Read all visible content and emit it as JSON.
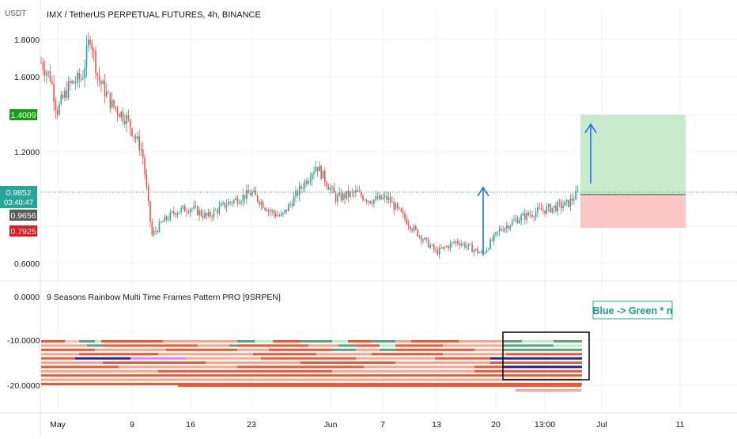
{
  "header": {
    "currency": "USDT",
    "title": "IMX / TetherUS PERPETUAL FUTURES, 4h, BINANCE"
  },
  "price_axis": {
    "ticks": [
      "1.8000",
      "1.6000",
      "1.2000",
      "0.6000"
    ],
    "labels": {
      "target": {
        "text": "1.4009",
        "color": "#10a010"
      },
      "current": {
        "text": "0.9852",
        "color": "#26a69a"
      },
      "countdown": {
        "text": "03:40:47"
      },
      "entry": {
        "text": "0.9656",
        "color": "#5a5a5a"
      },
      "stop": {
        "text": "0.7925",
        "color": "#e8191e"
      }
    }
  },
  "indicator": {
    "title": "9 Seasons Rainbow Multi Time Frames Pattern PRO [9SRPEN]",
    "ticks": [
      "0.0000",
      "-10.0000",
      "-20.0000"
    ],
    "annotation": "Blue -> Green * n"
  },
  "time_axis": {
    "ticks": [
      "May",
      "9",
      "16",
      "23",
      "Jun",
      "7",
      "13",
      "20",
      "13:00",
      "Jul",
      "11"
    ]
  },
  "chart_data": {
    "type": "candlestick",
    "title": "IMX / TetherUS PERPETUAL FUTURES, 4h, BINANCE",
    "xlabel": "",
    "ylabel": "USDT",
    "y_ticks": [
      1.8,
      1.6,
      1.2,
      0.6
    ],
    "ylim": [
      0.55,
      1.95
    ],
    "x_ticks": [
      "May",
      "9",
      "16",
      "23",
      "Jun",
      "7",
      "13",
      "20",
      "13:00",
      "Jul",
      "11"
    ],
    "price_path": [
      {
        "x": "May 1",
        "y": 1.68
      },
      {
        "x": "May 2",
        "y": 1.6
      },
      {
        "x": "May 3",
        "y": 1.42
      },
      {
        "x": "May 4",
        "y": 1.56
      },
      {
        "x": "May 5",
        "y": 1.6
      },
      {
        "x": "May 6",
        "y": 1.83
      },
      {
        "x": "May 7",
        "y": 1.6
      },
      {
        "x": "May 8",
        "y": 1.45
      },
      {
        "x": "May 9",
        "y": 1.38
      },
      {
        "x": "May 10",
        "y": 1.2
      },
      {
        "x": "May 11",
        "y": 0.75
      },
      {
        "x": "May 12",
        "y": 0.82
      },
      {
        "x": "May 14",
        "y": 0.88
      },
      {
        "x": "May 16",
        "y": 0.9
      },
      {
        "x": "May 18",
        "y": 0.85
      },
      {
        "x": "May 20",
        "y": 0.92
      },
      {
        "x": "May 23",
        "y": 0.98
      },
      {
        "x": "May 26",
        "y": 0.88
      },
      {
        "x": "May 28",
        "y": 0.85
      },
      {
        "x": "May 31",
        "y": 1.13
      },
      {
        "x": "Jun 2",
        "y": 0.95
      },
      {
        "x": "Jun 4",
        "y": 0.98
      },
      {
        "x": "Jun 6",
        "y": 0.94
      },
      {
        "x": "Jun 9",
        "y": 0.95
      },
      {
        "x": "Jun 11",
        "y": 0.78
      },
      {
        "x": "Jun 13",
        "y": 0.66
      },
      {
        "x": "Jun 15",
        "y": 0.72
      },
      {
        "x": "Jun 18",
        "y": 0.65
      },
      {
        "x": "Jun 20",
        "y": 0.78
      },
      {
        "x": "Jun 22",
        "y": 0.84
      },
      {
        "x": "Jun 24",
        "y": 0.88
      },
      {
        "x": "Jun 26",
        "y": 0.9
      },
      {
        "x": "Jun 28",
        "y": 0.92
      },
      {
        "x": "Jun 29",
        "y": 0.985
      }
    ],
    "current_price": 0.9852,
    "position": {
      "entry": 0.9656,
      "target": 1.4009,
      "stop": 0.7925
    },
    "indicator_ticks": [
      0,
      -10,
      -20
    ],
    "colors": {
      "up": "#26a69a",
      "down": "#ef5350",
      "target_zone": "#c9ebcb",
      "stop_zone": "#fdc6c6",
      "arrow": "#1e6bff"
    }
  }
}
